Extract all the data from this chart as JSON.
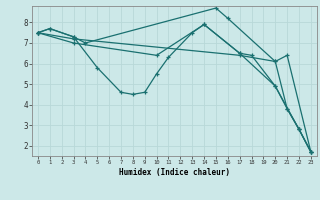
{
  "xlabel": "Humidex (Indice chaleur)",
  "bg_color": "#cce8e8",
  "line_color": "#1a7070",
  "grid_major_color": "#b8d8d8",
  "grid_minor_color": "#d0e8e8",
  "ylim": [
    1.5,
    8.8
  ],
  "xlim": [
    -0.5,
    23.5
  ],
  "lines": [
    {
      "x": [
        0,
        1,
        3,
        4,
        15,
        16,
        20,
        21,
        22,
        23
      ],
      "y": [
        7.5,
        7.7,
        7.3,
        7.0,
        8.7,
        8.2,
        6.1,
        3.8,
        2.8,
        1.7
      ]
    },
    {
      "x": [
        0,
        1,
        3,
        5,
        7,
        8,
        9,
        10,
        11,
        13,
        14,
        17,
        18,
        20,
        21,
        22,
        23
      ],
      "y": [
        7.5,
        7.7,
        7.3,
        5.8,
        4.6,
        4.5,
        4.6,
        5.5,
        6.3,
        7.5,
        7.9,
        6.5,
        6.4,
        4.9,
        3.8,
        2.8,
        1.7
      ]
    },
    {
      "x": [
        0,
        3,
        17,
        20,
        21,
        23
      ],
      "y": [
        7.5,
        7.2,
        6.4,
        6.1,
        6.4,
        1.7
      ]
    },
    {
      "x": [
        0,
        3,
        10,
        14,
        17,
        20,
        22,
        23
      ],
      "y": [
        7.5,
        7.0,
        6.4,
        7.9,
        6.5,
        4.9,
        2.8,
        1.7
      ]
    }
  ]
}
